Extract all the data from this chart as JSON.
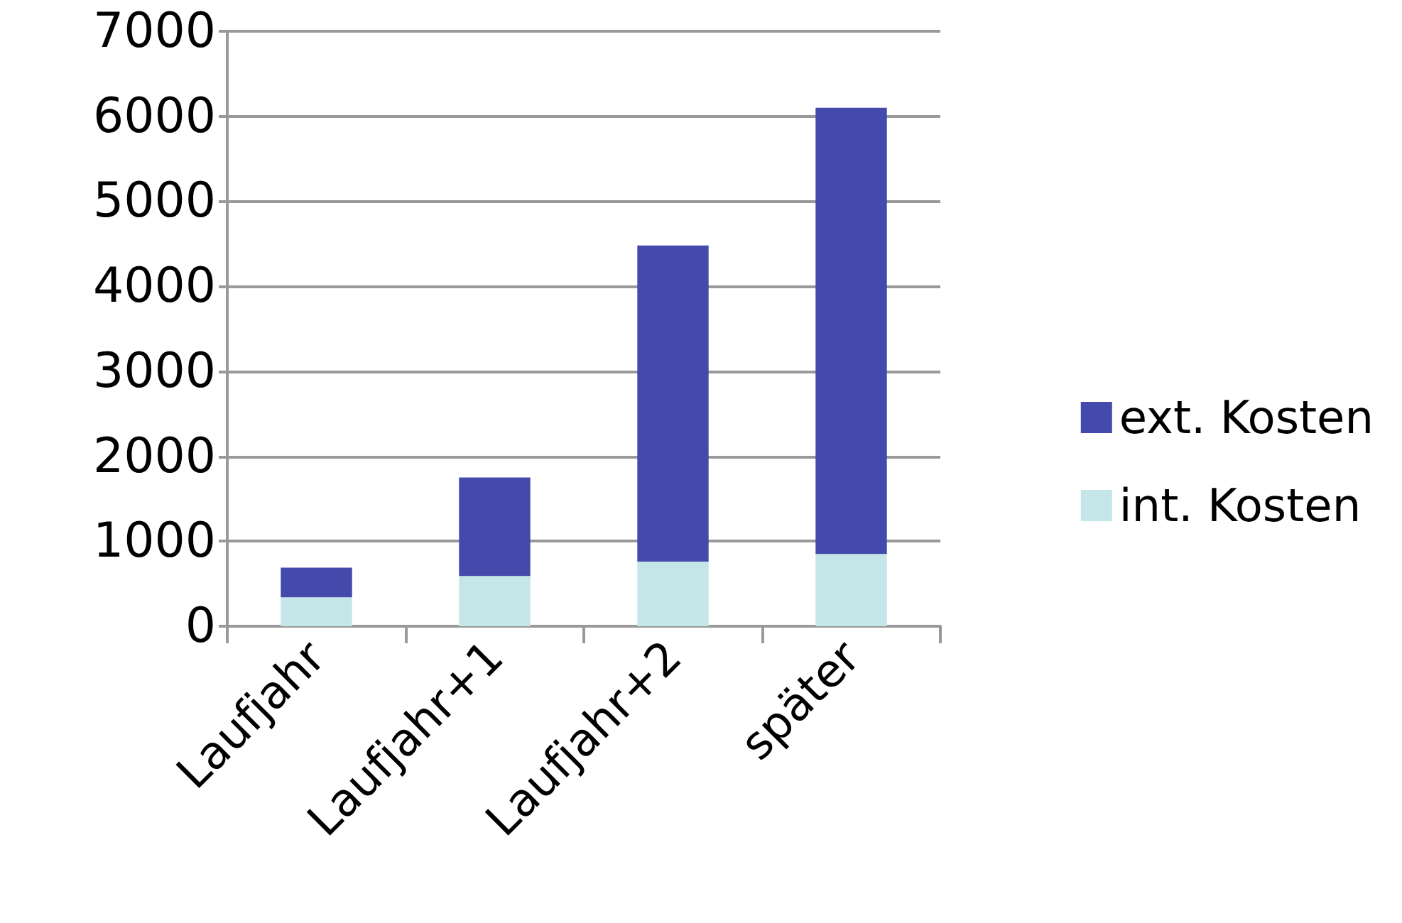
{
  "chart_data": {
    "type": "bar",
    "stacked": true,
    "categories": [
      "Laufjahr",
      "Laufjahr+1",
      "Laufjahr+2",
      "später"
    ],
    "series": [
      {
        "name": "int. Kosten",
        "color": "#c5e6e8",
        "values": [
          340,
          590,
          760,
          850
        ]
      },
      {
        "name": "ext. Kosten",
        "color": "#444aab",
        "values": [
          350,
          1160,
          3720,
          5250
        ]
      }
    ],
    "ylim": [
      0,
      7000
    ],
    "yticks": [
      0,
      1000,
      2000,
      3000,
      4000,
      5000,
      6000,
      7000
    ],
    "grid": "y",
    "legend": "right"
  }
}
